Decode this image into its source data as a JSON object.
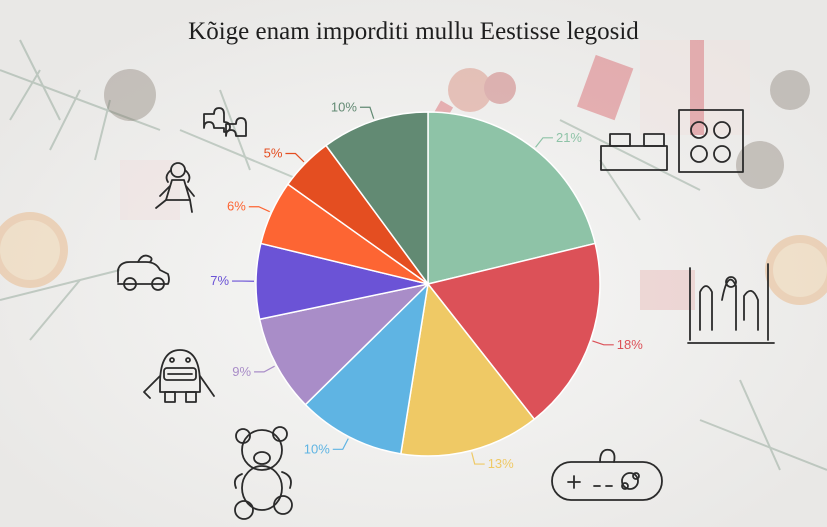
{
  "chart_data": {
    "type": "pie",
    "title": "Kõige enam imporditi mullu Eestisse legosid",
    "categories": [
      "Legod",
      "Mõistatused",
      "Videomängud",
      "Mänguasjad (kaisuloomad)",
      "Figuurid",
      "Autod",
      "Hobbimänguasjad",
      "Nukud",
      "Pusled"
    ],
    "values": [
      21,
      18,
      13,
      10,
      9,
      7,
      6,
      5,
      10
    ],
    "labels": [
      "21%",
      "18%",
      "13%",
      "10%",
      "9%",
      "7%",
      "6%",
      "5%",
      "10%"
    ],
    "colors": [
      "#8ec3a7",
      "#dc5158",
      "#efc965",
      "#5fb4e3",
      "#a98dc8",
      "#6b53d6",
      "#fd6533",
      "#e44e21",
      "#628a73"
    ],
    "icons": [
      "lego-bricks-icon",
      "marble-maze-icon",
      "gamepad-icon",
      "teddy-bear-icon",
      "robot-icon",
      "toy-car-icon",
      "doll-icon",
      "doll-icon",
      "puzzle-icon"
    ]
  }
}
